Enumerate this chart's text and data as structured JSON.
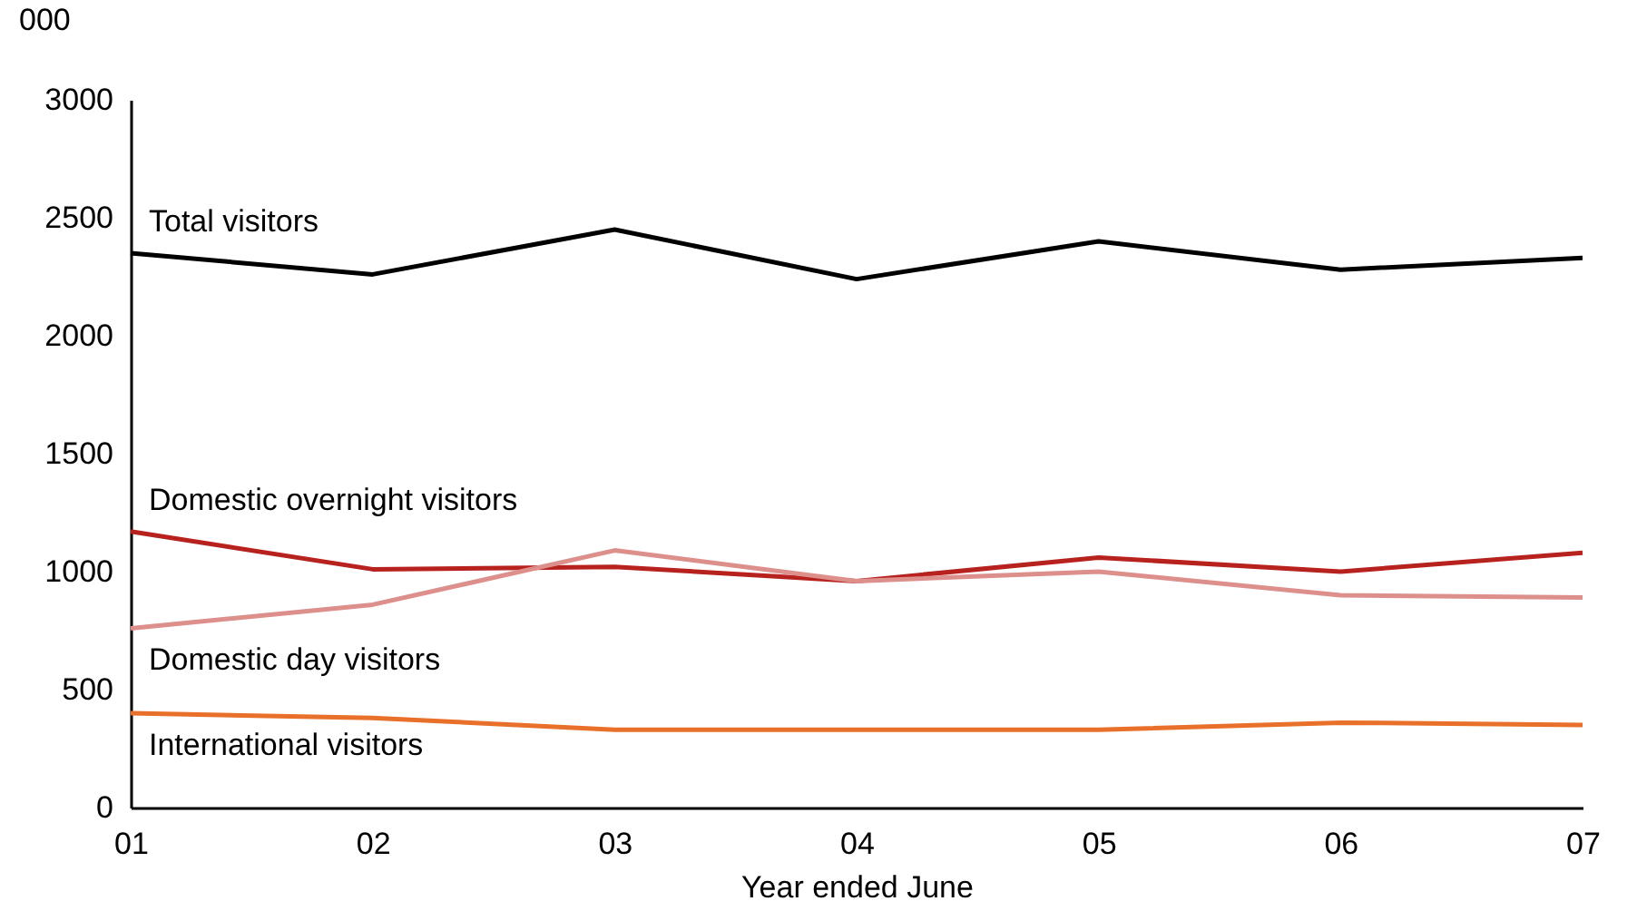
{
  "chart_data": {
    "type": "line",
    "ylabel": "000",
    "xlabel": "Year ended June",
    "categories": [
      "01",
      "02",
      "03",
      "04",
      "05",
      "06",
      "07"
    ],
    "ylim": [
      0,
      3000
    ],
    "yticks": [
      0,
      500,
      1000,
      1500,
      2000,
      2500,
      3000
    ],
    "grid": false,
    "marker": "none",
    "line_style": "solid",
    "series": [
      {
        "name": "Total visitors",
        "color": "#000000",
        "values": [
          2350,
          2260,
          2450,
          2240,
          2400,
          2280,
          2330
        ]
      },
      {
        "name": "Domestic overnight visitors",
        "color": "#b8221e",
        "values": [
          1170,
          1010,
          1020,
          960,
          1060,
          1000,
          1080
        ]
      },
      {
        "name": "Domestic day visitors",
        "color": "#dd8f8c",
        "values": [
          760,
          860,
          1090,
          960,
          1000,
          900,
          890
        ]
      },
      {
        "name": "International visitors",
        "color": "#e8702a",
        "values": [
          400,
          380,
          330,
          330,
          330,
          360,
          350
        ]
      }
    ]
  }
}
